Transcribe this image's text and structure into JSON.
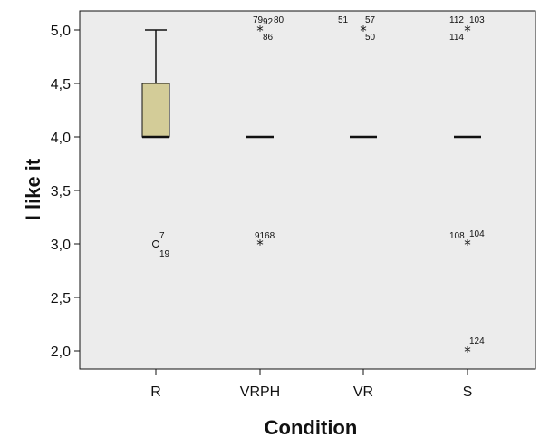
{
  "chart_data": {
    "type": "boxplot",
    "title": "",
    "xlabel": "Condition",
    "ylabel": "I like it",
    "categories": [
      "R",
      "VRPH",
      "VR",
      "S"
    ],
    "ylim": [
      1.85,
      5.2
    ],
    "yticks": [
      2.0,
      2.5,
      3.0,
      3.5,
      4.0,
      4.5,
      5.0
    ],
    "ytick_labels": [
      "2,0",
      "2,5",
      "3,0",
      "3,5",
      "4,0",
      "4,5",
      "5,0"
    ],
    "colors": {
      "plot_bg": "#ececec",
      "box_fill": "#d3cc98",
      "line": "#111111"
    },
    "boxes": [
      {
        "category": "R",
        "median": 4.0,
        "q1": 4.0,
        "q3": 4.5,
        "whisker_low": 4.0,
        "whisker_high": 5.0
      },
      {
        "category": "VRPH",
        "median": 4.0,
        "q1": 4.0,
        "q3": 4.0,
        "whisker_low": 4.0,
        "whisker_high": 4.0
      },
      {
        "category": "VR",
        "median": 4.0,
        "q1": 4.0,
        "q3": 4.0,
        "whisker_low": 4.0,
        "whisker_high": 4.0
      },
      {
        "category": "S",
        "median": 4.0,
        "q1": 4.0,
        "q3": 4.0,
        "whisker_low": 4.0,
        "whisker_high": 4.0
      }
    ],
    "outliers": [
      {
        "category": "R",
        "value": 3.0,
        "marker": "circle",
        "labels": [
          "7",
          "19"
        ]
      },
      {
        "category": "VRPH",
        "value": 5.0,
        "marker": "star",
        "labels": [
          "79",
          "92",
          "80",
          "86"
        ]
      },
      {
        "category": "VRPH",
        "value": 3.0,
        "marker": "star",
        "labels": [
          "9168"
        ]
      },
      {
        "category": "VR",
        "value": 5.0,
        "marker": "star",
        "labels": [
          "51",
          "57",
          "50"
        ]
      },
      {
        "category": "S",
        "value": 5.0,
        "marker": "star",
        "labels": [
          "112",
          "103",
          "114"
        ]
      },
      {
        "category": "S",
        "value": 3.0,
        "marker": "star",
        "labels": [
          "108",
          "104"
        ]
      },
      {
        "category": "S",
        "value": 2.0,
        "marker": "star",
        "labels": [
          "124"
        ]
      }
    ]
  }
}
